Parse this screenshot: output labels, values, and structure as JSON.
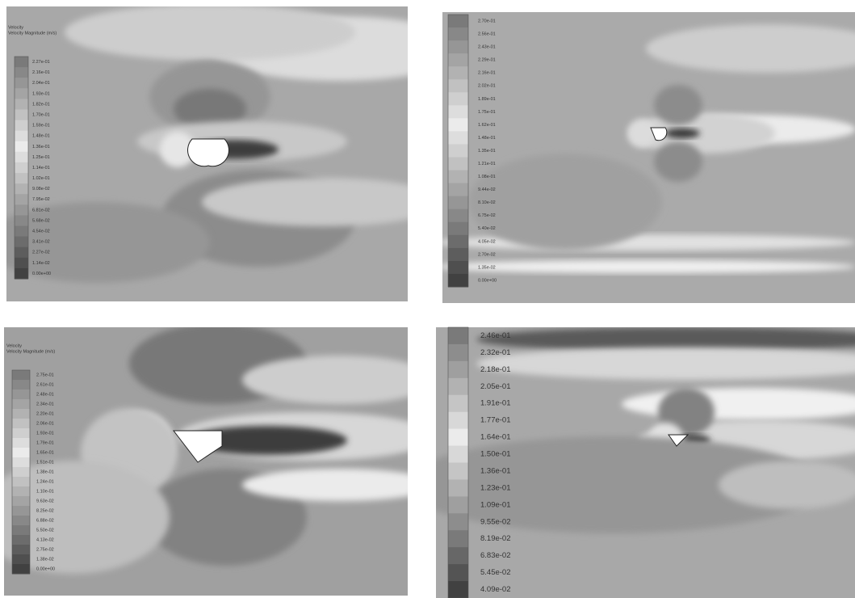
{
  "panels": [
    {
      "header": [
        "Velocity",
        "Velocity Magnitude (m/s)"
      ],
      "legend": [
        "2.27e-01",
        "2.16e-01",
        "2.04e-01",
        "1.93e-01",
        "1.82e-01",
        "1.70e-01",
        "1.59e-01",
        "1.48e-01",
        "1.36e-01",
        "1.25e-01",
        "1.14e-01",
        "1.02e-01",
        "9.08e-02",
        "7.95e-02",
        "6.81e-02",
        "5.68e-02",
        "4.54e-02",
        "3.41e-02",
        "2.27e-02",
        "1.14e-02",
        "0.00e+00"
      ]
    },
    {
      "header": [],
      "legend": [
        "2.70e-01",
        "2.56e-01",
        "2.43e-01",
        "2.29e-01",
        "2.16e-01",
        "2.02e-01",
        "1.89e-01",
        "1.75e-01",
        "1.62e-01",
        "1.48e-01",
        "1.35e-01",
        "1.21e-01",
        "1.08e-01",
        "9.44e-02",
        "8.10e-02",
        "6.75e-02",
        "5.40e-02",
        "4.05e-02",
        "2.70e-02",
        "1.35e-02",
        "0.00e+00"
      ]
    },
    {
      "header": [
        "Velocity",
        "Velocity Magnitude (m/s)"
      ],
      "legend": [
        "2.75e-01",
        "2.61e-01",
        "2.48e-01",
        "2.34e-01",
        "2.20e-01",
        "2.06e-01",
        "1.93e-01",
        "1.79e-01",
        "1.65e-01",
        "1.51e-01",
        "1.38e-01",
        "1.24e-01",
        "1.10e-01",
        "9.63e-02",
        "8.25e-02",
        "6.88e-02",
        "5.50e-02",
        "4.13e-02",
        "2.75e-02",
        "1.38e-02",
        "0.00e+00"
      ]
    },
    {
      "header": [],
      "legend": [
        "2.46e-01",
        "2.32e-01",
        "2.18e-01",
        "2.05e-01",
        "1.91e-01",
        "1.77e-01",
        "1.64e-01",
        "1.50e-01",
        "1.36e-01",
        "1.23e-01",
        "1.09e-01",
        "9.55e-02",
        "8.19e-02",
        "6.83e-02",
        "5.45e-02",
        "4.09e-02"
      ]
    }
  ]
}
